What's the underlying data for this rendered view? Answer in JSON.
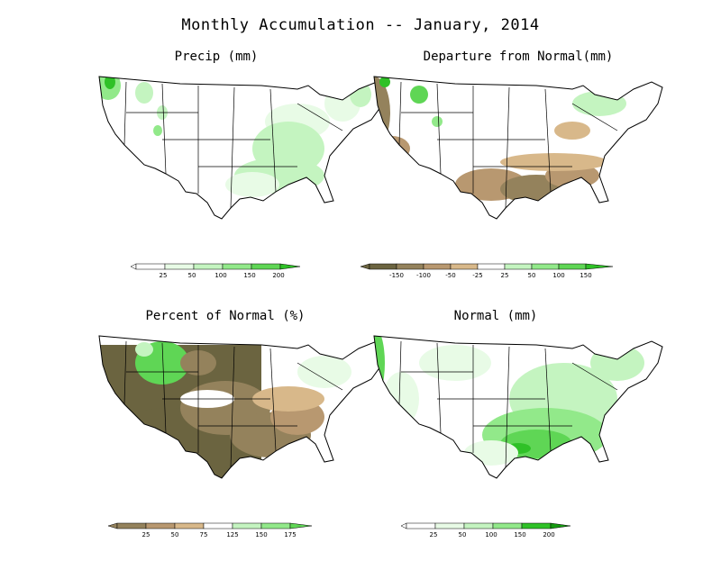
{
  "page": {
    "title": "Monthly Accumulation -- January, 2014"
  },
  "colors": {
    "green_1": "#e8fbe6",
    "green_2": "#c4f4c0",
    "green_3": "#92e98a",
    "green_4": "#5fd655",
    "green_5": "#2fc127",
    "green_6": "#159a10",
    "brown_1": "#d8b88a",
    "brown_2": "#b89870",
    "brown_3": "#94825c",
    "brown_4": "#6b6440",
    "background": "#ffffff"
  },
  "panels": [
    {
      "id": "precip",
      "title": "Precip (mm)",
      "legend_labels": [
        "25",
        "50",
        "100",
        "150",
        "200"
      ]
    },
    {
      "id": "departure",
      "title": "Departure from Normal(mm)",
      "legend_labels": [
        "-150",
        "-100",
        "-50",
        "-25",
        "25",
        "50",
        "100",
        "150"
      ]
    },
    {
      "id": "percent",
      "title": "Percent of Normal (%)",
      "legend_labels": [
        "25",
        "50",
        "75",
        "125",
        "150",
        "175"
      ]
    },
    {
      "id": "normal",
      "title": "Normal (mm)",
      "legend_labels": [
        "25",
        "50",
        "100",
        "150",
        "200"
      ]
    }
  ]
}
